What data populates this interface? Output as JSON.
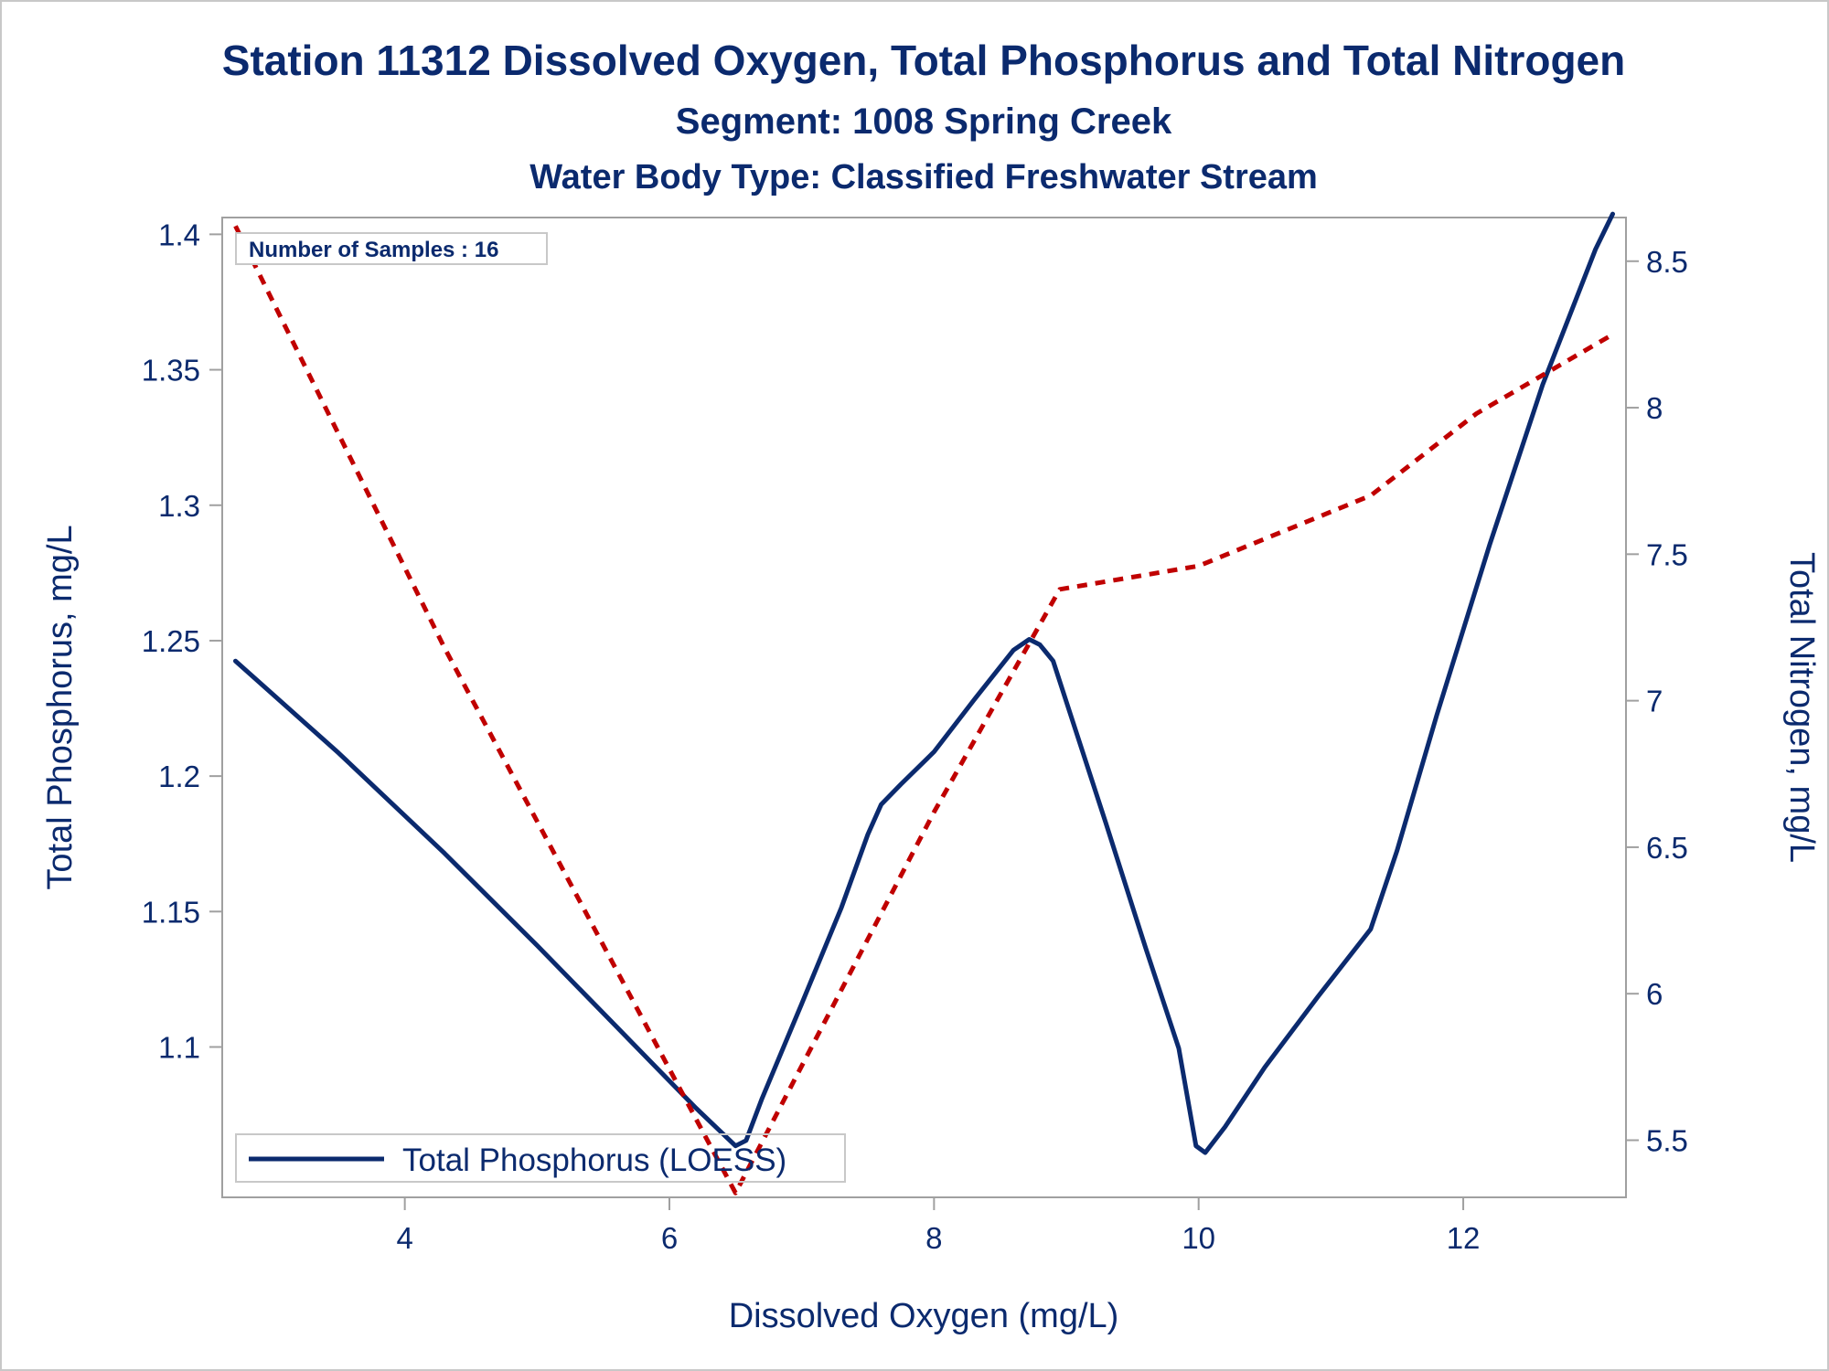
{
  "chart_data": {
    "type": "line",
    "title": "Station 11312  Dissolved Oxygen, Total Phosphorus and Total Nitrogen",
    "subtitle": "Segment: 1008  Spring Creek",
    "subtitle2": "Water Body Type: Classified Freshwater Stream",
    "xlabel": "Dissolved Oxygen (mg/L)",
    "ylabel": "Total Phosphorus, mg/L",
    "y2label": "Total Nitrogen, mg/L",
    "xlim": [
      2.62,
      13.23
    ],
    "ylim": [
      1.0445,
      1.4062
    ],
    "y2lim": [
      5.305,
      8.649
    ],
    "xticks": [
      4,
      6,
      8,
      10,
      12
    ],
    "yticks": [
      1.1,
      1.15,
      1.2,
      1.25,
      1.3,
      1.35,
      1.4
    ],
    "y2ticks": [
      5.5,
      6,
      6.5,
      7,
      7.5,
      8,
      8.5
    ],
    "annotation": "Number of Samples : 16",
    "legend": {
      "position": "bottom-left",
      "entries": [
        "Total Phosphorus (LOESS)"
      ]
    },
    "grid": false,
    "series": [
      {
        "name": "Total Phosphorus (LOESS)",
        "axis": "left",
        "style": "solid",
        "color": "#0b2a6e",
        "x": [
          2.72,
          3.5,
          4.3,
          5.0,
          5.6,
          6.2,
          6.5,
          6.58,
          6.7,
          7.0,
          7.3,
          7.5,
          7.6,
          7.75,
          8.0,
          8.3,
          8.6,
          8.72,
          8.8,
          8.9,
          9.0,
          9.3,
          9.6,
          9.85,
          9.98,
          10.05,
          10.2,
          10.5,
          10.9,
          11.3,
          11.5,
          11.8,
          12.2,
          12.6,
          13.0,
          13.13
        ],
        "y": [
          1.2425,
          1.2085,
          1.1715,
          1.1375,
          1.1075,
          1.0775,
          1.0635,
          1.0655,
          1.081,
          1.116,
          1.1515,
          1.1785,
          1.1895,
          1.197,
          1.209,
          1.228,
          1.2465,
          1.2505,
          1.2485,
          1.2425,
          1.2275,
          1.1825,
          1.1365,
          1.0995,
          1.0635,
          1.061,
          1.0705,
          1.0925,
          1.1185,
          1.1435,
          1.1725,
          1.2225,
          1.2855,
          1.3445,
          1.3945,
          1.4075
        ]
      },
      {
        "name": "",
        "axis": "right",
        "style": "dashed",
        "color": "#c00000",
        "x": [
          2.72,
          4.3,
          6.5,
          8.0,
          8.95,
          10.0,
          11.3,
          12.1,
          13.13
        ],
        "y": [
          8.62,
          7.18,
          5.32,
          6.62,
          7.38,
          7.46,
          7.7,
          7.98,
          8.25
        ]
      }
    ]
  }
}
